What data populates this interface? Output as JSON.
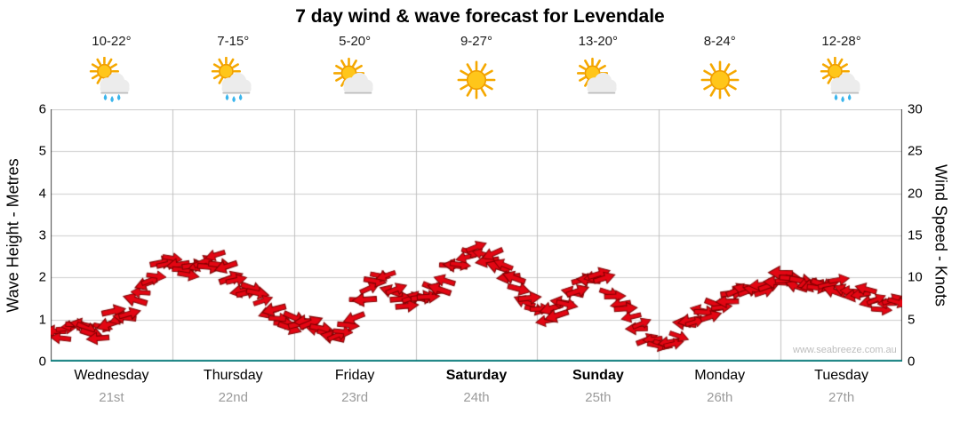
{
  "title": "7 day wind & wave forecast for Levendale",
  "watermark": "www.seabreeze.com.au",
  "colors": {
    "arrow_fill": "#e30613",
    "arrow_stroke": "#7e0000",
    "grid": "#cccccc",
    "day_grid": "#bfbfbf",
    "axis": "#444444",
    "baseline": "#0e7d7d",
    "date_text": "#9a9a9a"
  },
  "days": [
    {
      "name": "Wednesday",
      "date": "21st",
      "temp": "10-22°",
      "icon": "sun-cloud-rain",
      "bold": false
    },
    {
      "name": "Thursday",
      "date": "22nd",
      "temp": "7-15°",
      "icon": "sun-cloud-rain",
      "bold": false
    },
    {
      "name": "Friday",
      "date": "23rd",
      "temp": "5-20°",
      "icon": "sun-cloud",
      "bold": false
    },
    {
      "name": "Saturday",
      "date": "24th",
      "temp": "9-27°",
      "icon": "sun",
      "bold": true
    },
    {
      "name": "Sunday",
      "date": "25th",
      "temp": "13-20°",
      "icon": "sun-cloud",
      "bold": true
    },
    {
      "name": "Monday",
      "date": "26th",
      "temp": "8-24°",
      "icon": "sun",
      "bold": false
    },
    {
      "name": "Tuesday",
      "date": "27th",
      "temp": "12-28°",
      "icon": "sun-cloud-rain",
      "bold": false
    }
  ],
  "chart_data": {
    "type": "line",
    "marker": "wind-arrow",
    "title": "7 day wind & wave forecast for Levendale",
    "axes": {
      "left": {
        "label": "Wave Height - Metres",
        "min": 0,
        "max": 6,
        "ticks": [
          0,
          1,
          2,
          3,
          4,
          5,
          6
        ]
      },
      "right": {
        "label": "Wind Speed - Knots",
        "min": 0,
        "max": 30,
        "ticks": [
          0,
          5,
          10,
          15,
          20,
          25,
          30
        ]
      }
    },
    "x_unit": "hours",
    "x_range": [
      0,
      168
    ],
    "x_categories": [
      "Wednesday 21st",
      "Thursday 22nd",
      "Friday 23rd",
      "Saturday 24th",
      "Sunday 25th",
      "Monday 26th",
      "Tuesday 27th"
    ],
    "grid": "horizontal unit lines + vertical day-boundary lines",
    "legend": "none",
    "x_hours": [
      0,
      3,
      6,
      9,
      12,
      15,
      18,
      21,
      24,
      27,
      30,
      33,
      36,
      39,
      42,
      45,
      48,
      51,
      54,
      57,
      60,
      63,
      66,
      69,
      72,
      75,
      78,
      81,
      84,
      87,
      90,
      93,
      96,
      99,
      102,
      105,
      108,
      111,
      114,
      117,
      120,
      123,
      126,
      129,
      132,
      135,
      138,
      141,
      144,
      147,
      150,
      153,
      156,
      159,
      162,
      165
    ],
    "series": [
      {
        "name": "Wind speed & direction",
        "unit": "knots",
        "color": "#e30613",
        "values": [
          4,
          3,
          4.5,
          3.5,
          5,
          6,
          7.5,
          11,
          12,
          10.5,
          11.5,
          12,
          10,
          8.5,
          7,
          5,
          4.5,
          4,
          3.5,
          4,
          5.5,
          9.5,
          10,
          7.5,
          7,
          8,
          10,
          12.5,
          13,
          12.5,
          10.5,
          8,
          6,
          5.5,
          7.5,
          9.5,
          10,
          8.5,
          6,
          3.5,
          2.5,
          3,
          4.5,
          5.5,
          7,
          8.5,
          9,
          8.5,
          10,
          9.5,
          10,
          9,
          9.5,
          8.5,
          8,
          6.5
        ]
      }
    ]
  }
}
